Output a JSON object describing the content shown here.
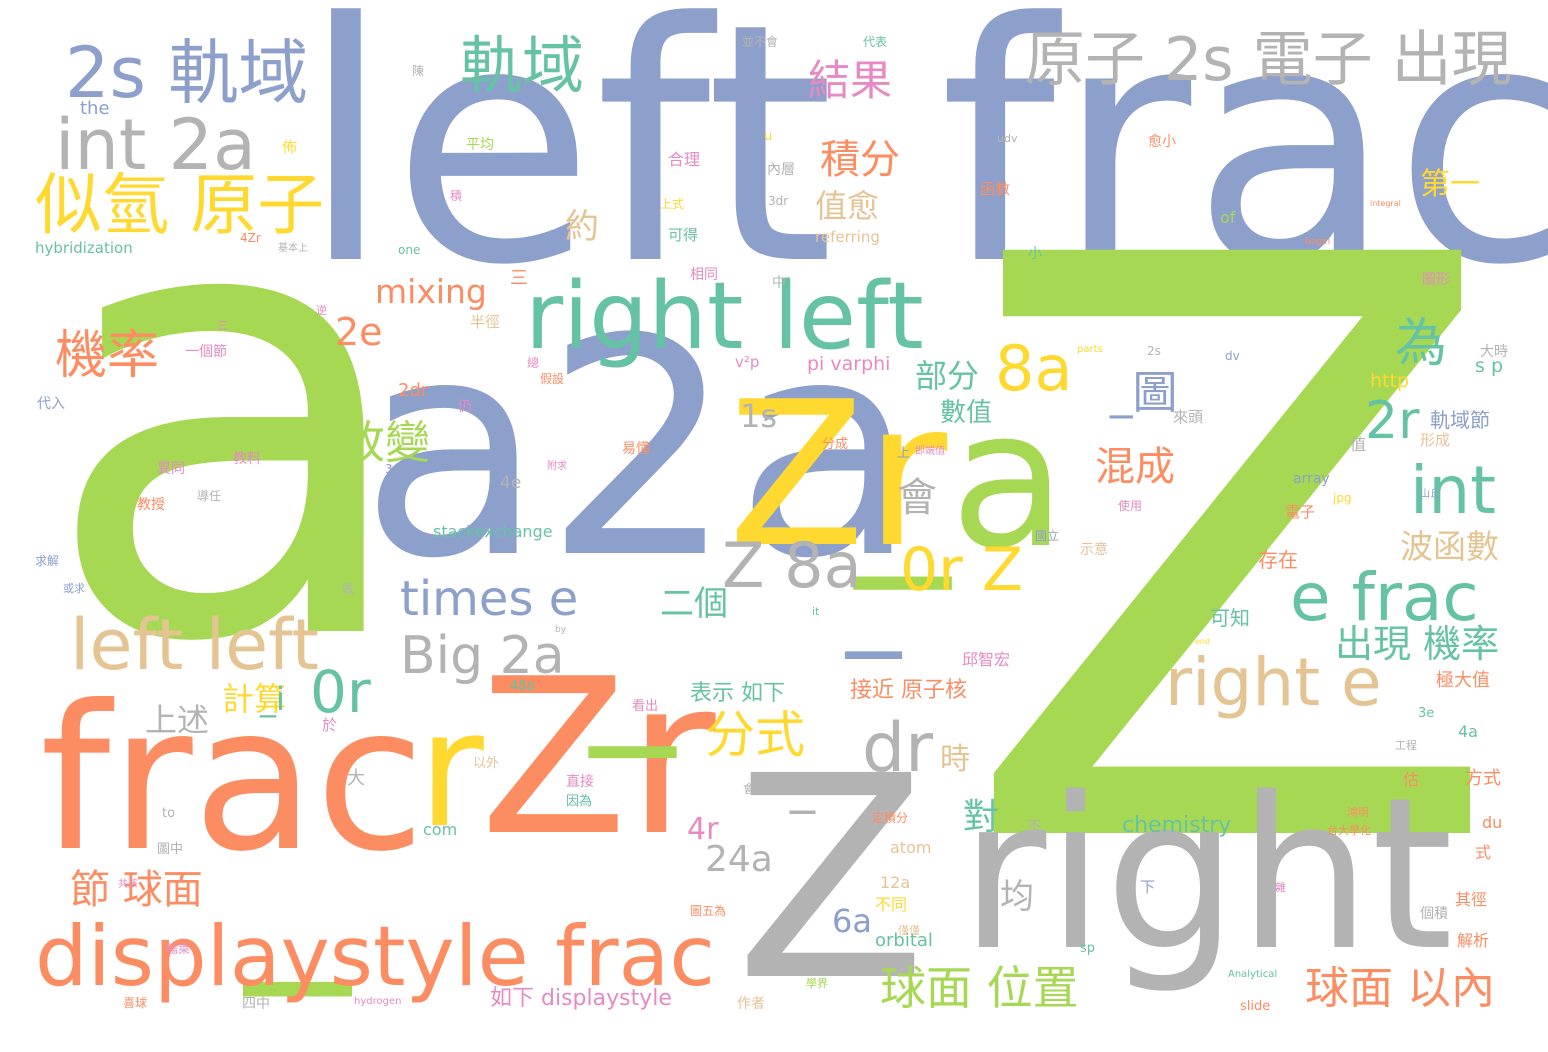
{
  "palette": {
    "green": "#a6d854",
    "blue": "#8da0cb",
    "orange": "#fc8d62",
    "yellow": "#ffd92f",
    "teal": "#66c2a5",
    "gray": "#b3b3b3",
    "tan": "#e5c494",
    "pink": "#e78ac3"
  },
  "words": [
    {
      "text": "a",
      "color": "green"
    },
    {
      "text": "left frac",
      "color": "blue"
    },
    {
      "text": "Z",
      "color": "green"
    },
    {
      "text": "a2a",
      "color": "blue"
    },
    {
      "text": "Zr",
      "color": "yellow"
    },
    {
      "text": "_a",
      "color": "green"
    },
    {
      "text": "right",
      "color": "gray"
    },
    {
      "text": "frac",
      "color": "orange"
    },
    {
      "text": "Zr",
      "color": "orange"
    },
    {
      "text": "r",
      "color": "yellow"
    },
    {
      "text": "Z",
      "color": "gray"
    },
    {
      "text": "_",
      "color": "green"
    },
    {
      "text": "_",
      "color": "green"
    },
    {
      "text": "_",
      "color": "blue"
    },
    {
      "text": "right left",
      "color": "teal"
    },
    {
      "text": "displaystyle frac",
      "color": "orange"
    },
    {
      "text": "2s 軌域",
      "color": "blue"
    },
    {
      "text": "軌域",
      "color": "teal"
    },
    {
      "text": "原子 2s 電子 出現",
      "color": "gray"
    },
    {
      "text": "int 2a",
      "color": "gray"
    },
    {
      "text": "似氫 原子",
      "color": "yellow"
    },
    {
      "text": "left left",
      "color": "tan"
    },
    {
      "text": "right e",
      "color": "tan"
    },
    {
      "text": "e frac",
      "color": "teal"
    },
    {
      "text": "int",
      "color": "teal"
    },
    {
      "text": "8a",
      "color": "yellow"
    },
    {
      "text": "2r",
      "color": "teal"
    },
    {
      "text": "dr",
      "color": "gray"
    },
    {
      "text": "Z 8a",
      "color": "gray"
    },
    {
      "text": "0r Z",
      "color": "yellow"
    },
    {
      "text": "0r",
      "color": "teal"
    },
    {
      "text": "Big 2a",
      "color": "gray"
    },
    {
      "text": "times e",
      "color": "blue"
    },
    {
      "text": "分式",
      "color": "yellow"
    },
    {
      "text": "機率",
      "color": "orange"
    },
    {
      "text": "為",
      "color": "teal"
    },
    {
      "text": "結果",
      "color": "pink"
    },
    {
      "text": "積分",
      "color": "orange"
    },
    {
      "text": "值愈",
      "color": "tan"
    },
    {
      "text": "_圖",
      "color": "blue"
    },
    {
      "text": "改變",
      "color": "green"
    },
    {
      "text": "會",
      "color": "gray"
    },
    {
      "text": "混成",
      "color": "orange"
    },
    {
      "text": "部分",
      "color": "teal"
    },
    {
      "text": "1s",
      "color": "gray"
    },
    {
      "text": "2e",
      "color": "orange"
    },
    {
      "text": "mixing",
      "color": "orange"
    },
    {
      "text": "出現 機率",
      "color": "teal"
    },
    {
      "text": "波函數",
      "color": "tan"
    },
    {
      "text": "二個",
      "color": "teal"
    },
    {
      "text": "節 球面",
      "color": "orange"
    },
    {
      "text": "球面 位置",
      "color": "green"
    },
    {
      "text": "球面 以內",
      "color": "orange"
    },
    {
      "text": "24a",
      "color": "gray"
    },
    {
      "text": "6a",
      "color": "blue"
    },
    {
      "text": "4r",
      "color": "pink"
    },
    {
      "text": "對",
      "color": "teal"
    },
    {
      "text": "均",
      "color": "gray"
    },
    {
      "text": "時",
      "color": "tan"
    },
    {
      "text": "計算",
      "color": "yellow"
    },
    {
      "text": "_i",
      "color": "teal"
    },
    {
      "text": "上述",
      "color": "gray"
    },
    {
      "text": "_",
      "color": "gray"
    },
    {
      "text": "約",
      "color": "tan"
    },
    {
      "text": "第一",
      "color": "yellow"
    },
    {
      "text": "數值",
      "color": "teal"
    },
    {
      "text": "接近 原子核",
      "color": "orange"
    },
    {
      "text": "表示 如下",
      "color": "teal"
    },
    {
      "text": "如下 displaystyle",
      "color": "pink"
    },
    {
      "text": "chemistry",
      "color": "teal"
    },
    {
      "text": "stackexchange",
      "color": "teal"
    },
    {
      "text": "pi varphi",
      "color": "pink"
    },
    {
      "text": "hybridization",
      "color": "teal"
    },
    {
      "text": "the",
      "color": "blue"
    },
    {
      "text": "http",
      "color": "yellow"
    },
    {
      "text": "s p",
      "color": "teal"
    },
    {
      "text": "軌域節",
      "color": "blue"
    },
    {
      "text": "形成",
      "color": "tan"
    },
    {
      "text": "array",
      "color": "blue"
    },
    {
      "text": "電子",
      "color": "orange"
    },
    {
      "text": "存在",
      "color": "orange"
    },
    {
      "text": "可知",
      "color": "teal"
    },
    {
      "text": "邱智宏",
      "color": "pink"
    },
    {
      "text": "極大值",
      "color": "orange"
    },
    {
      "text": "4a",
      "color": "teal"
    },
    {
      "text": "方式",
      "color": "orange"
    },
    {
      "text": "du",
      "color": "orange"
    },
    {
      "text": "式",
      "color": "orange"
    },
    {
      "text": "其徑",
      "color": "orange"
    },
    {
      "text": "解析",
      "color": "orange"
    },
    {
      "text": "orbital",
      "color": "teal"
    },
    {
      "text": "atom",
      "color": "tan"
    },
    {
      "text": "12a",
      "color": "tan"
    },
    {
      "text": "不同",
      "color": "yellow"
    },
    {
      "text": "com",
      "color": "teal"
    },
    {
      "text": "合理",
      "color": "pink"
    },
    {
      "text": "可得",
      "color": "teal"
    },
    {
      "text": "平均",
      "color": "green"
    },
    {
      "text": "函數",
      "color": "orange"
    },
    {
      "text": "of",
      "color": "green"
    },
    {
      "text": "referring",
      "color": "tan"
    },
    {
      "text": "one",
      "color": "teal"
    },
    {
      "text": "3dr",
      "color": "gray"
    },
    {
      "text": "相同",
      "color": "pink"
    },
    {
      "text": "半徑",
      "color": "tan"
    },
    {
      "text": "2dr",
      "color": "orange"
    },
    {
      "text": "一個節",
      "color": "pink"
    },
    {
      "text": "代入",
      "color": "blue"
    },
    {
      "text": "異同",
      "color": "pink"
    },
    {
      "text": "教料",
      "color": "pink"
    },
    {
      "text": "教授",
      "color": "orange"
    },
    {
      "text": "易懂",
      "color": "orange"
    },
    {
      "text": "4e",
      "color": "gray"
    },
    {
      "text": "值",
      "color": "gray"
    },
    {
      "text": "代表",
      "color": "teal"
    },
    {
      "text": "並不會",
      "color": "gray"
    },
    {
      "text": "佈",
      "color": "yellow"
    },
    {
      "text": "4Zr",
      "color": "orange"
    },
    {
      "text": "三",
      "color": "orange"
    },
    {
      "text": "分成",
      "color": "orange"
    },
    {
      "text": "上",
      "color": "blue"
    },
    {
      "text": "dv",
      "color": "blue"
    },
    {
      "text": "2s",
      "color": "gray"
    },
    {
      "text": "大時",
      "color": "gray"
    },
    {
      "text": "圖形",
      "color": "pink"
    },
    {
      "text": "integral",
      "color": "orange"
    },
    {
      "text": "begin",
      "color": "orange"
    },
    {
      "text": "小",
      "color": "teal"
    },
    {
      "text": "中",
      "color": "gray"
    },
    {
      "text": "內層",
      "color": "gray"
    },
    {
      "text": "上式",
      "color": "yellow"
    },
    {
      "text": "愈小",
      "color": "orange"
    },
    {
      "text": "示意",
      "color": "tan"
    },
    {
      "text": "仍",
      "color": "pink"
    },
    {
      "text": "假設",
      "color": "orange"
    },
    {
      "text": "以外",
      "color": "tan"
    },
    {
      "text": "直接",
      "color": "pink"
    },
    {
      "text": "因為",
      "color": "teal"
    },
    {
      "text": "會愈",
      "color": "gray"
    },
    {
      "text": "大",
      "color": "gray"
    },
    {
      "text": "於",
      "color": "pink"
    },
    {
      "text": "看出",
      "color": "pink"
    },
    {
      "text": "定積分",
      "color": "orange"
    },
    {
      "text": "下",
      "color": "blue"
    },
    {
      "text": "48a",
      "color": "teal"
    },
    {
      "text": "to",
      "color": "gray"
    },
    {
      "text": "圖中",
      "color": "gray"
    },
    {
      "text": "僅僅",
      "color": "tan"
    },
    {
      "text": "不",
      "color": "gray"
    },
    {
      "text": "圖五為",
      "color": "orange"
    },
    {
      "text": "作者",
      "color": "tan"
    },
    {
      "text": "slide",
      "color": "orange"
    },
    {
      "text": "sp",
      "color": "teal"
    },
    {
      "text": "3e",
      "color": "teal"
    },
    {
      "text": "估",
      "color": "orange"
    },
    {
      "text": "3r",
      "color": "blue"
    },
    {
      "text": "求解",
      "color": "blue"
    },
    {
      "text": "v²p",
      "color": "pink"
    },
    {
      "text": "來頭",
      "color": "gray"
    },
    {
      "text": "it",
      "color": "teal"
    },
    {
      "text": "by",
      "color": "gray"
    },
    {
      "text": "end",
      "color": "yellow"
    },
    {
      "text": "個積",
      "color": "gray"
    },
    {
      "text": "jpg",
      "color": "yellow"
    },
    {
      "text": "使用",
      "color": "pink"
    },
    {
      "text": "u",
      "color": "yellow"
    },
    {
      "text": "udv",
      "color": "gray"
    },
    {
      "text": "積",
      "color": "pink"
    },
    {
      "text": "陳",
      "color": "gray"
    },
    {
      "text": "基本上",
      "color": "gray"
    },
    {
      "text": "做",
      "color": "gray"
    },
    {
      "text": "四中",
      "color": "gray"
    },
    {
      "text": "hydrogen",
      "color": "pink"
    },
    {
      "text": "Analytical",
      "color": "teal"
    },
    {
      "text": "學界",
      "color": "green"
    },
    {
      "text": "腸萊",
      "color": "pink"
    },
    {
      "text": "喜球",
      "color": "orange"
    },
    {
      "text": "共孩",
      "color": "pink"
    },
    {
      "text": "或求",
      "color": "blue"
    },
    {
      "text": "導任",
      "color": "gray"
    },
    {
      "text": "逆",
      "color": "pink"
    },
    {
      "text": "工程",
      "color": "gray"
    },
    {
      "text": "總",
      "color": "pink"
    },
    {
      "text": "雜",
      "color": "pink"
    },
    {
      "text": "附求",
      "color": "pink"
    },
    {
      "text": "國立",
      "color": "blue"
    },
    {
      "text": "山丘",
      "color": "blue"
    },
    {
      "text": "鴻明",
      "color": "orange"
    },
    {
      "text": "台大學化",
      "color": "orange"
    },
    {
      "text": "三",
      "color": "pink"
    },
    {
      "text": "即端值",
      "color": "pink"
    },
    {
      "text": "parts",
      "color": "yellow"
    }
  ]
}
